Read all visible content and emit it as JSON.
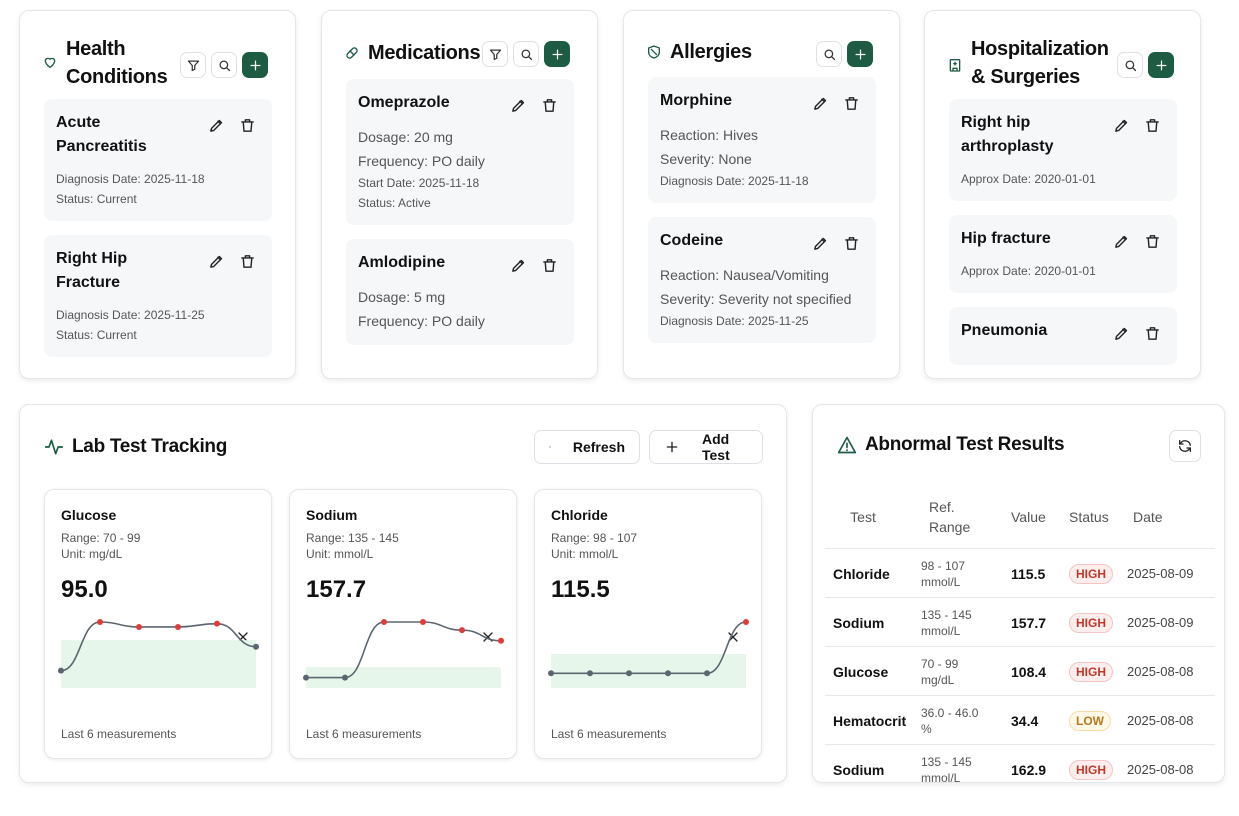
{
  "health_conditions": {
    "title": "Health Conditions",
    "items": [
      {
        "name": "Acute Pancreatitis",
        "lines": [],
        "small": [
          "Diagnosis Date: 2025-11-18",
          "Status: Current"
        ]
      },
      {
        "name": "Right Hip Fracture",
        "lines": [],
        "small": [
          "Diagnosis Date: 2025-11-25",
          "Status: Current"
        ]
      }
    ]
  },
  "medications": {
    "title": "Medications",
    "items": [
      {
        "name": "Omeprazole",
        "lines": [
          "Dosage: 20 mg",
          "Frequency: PO daily"
        ],
        "small": [
          "Start Date: 2025-11-18",
          "Status: Active"
        ]
      },
      {
        "name": "Amlodipine",
        "lines": [
          "Dosage: 5 mg",
          "Frequency: PO daily"
        ],
        "small": []
      }
    ]
  },
  "allergies": {
    "title": "Allergies",
    "items": [
      {
        "name": "Morphine",
        "lines": [
          "Reaction: Hives",
          "Severity: None"
        ],
        "small": [
          "Diagnosis Date: 2025-11-18"
        ]
      },
      {
        "name": "Codeine",
        "lines": [
          "Reaction: Nausea/Vomiting",
          "Severity: Severity not specified"
        ],
        "small": [
          "Diagnosis Date: 2025-11-25"
        ]
      }
    ]
  },
  "hospitalizations": {
    "title": "Hospitalization & Surgeries",
    "items": [
      {
        "name": "Right hip arthroplasty",
        "lines": [],
        "small": [
          "Approx Date: 2020-01-01"
        ]
      },
      {
        "name": "Hip fracture",
        "lines": [],
        "small": [
          "Approx Date: 2020-01-01"
        ]
      },
      {
        "name": "Pneumonia",
        "lines": [],
        "small": []
      }
    ]
  },
  "lab_tracking": {
    "title": "Lab Test Tracking",
    "buttons": [
      "Refresh",
      "Add Test"
    ],
    "tests": [
      {
        "name": "Glucose",
        "range": "Range: 70 - 99",
        "unit": "Unit: mg/dL",
        "latest": "95.0",
        "ref_low": 70,
        "ref_high": 99,
        "trend": [
          80.5,
          110,
          107,
          107,
          109,
          95
        ],
        "footer": "Last 6 measurements"
      },
      {
        "name": "Sodium",
        "range": "Range: 135 - 145",
        "unit": "Unit: mmol/L",
        "latest": "157.7",
        "ref_low": 135,
        "ref_high": 145,
        "trend": [
          140,
          140,
          166.7,
          166.7,
          162.8,
          157.7
        ],
        "footer": "Last 6 measurements"
      },
      {
        "name": "Chloride",
        "range": "Range: 98 - 107",
        "unit": "Unit: mmol/L",
        "latest": "115.5",
        "ref_low": 98,
        "ref_high": 107,
        "trend": [
          101.9,
          101.9,
          101.9,
          101.9,
          101.9,
          115.5
        ],
        "footer": "Last 6 measurements"
      }
    ]
  },
  "abnormal_results": {
    "title": "Abnormal Test Results",
    "columns": [
      "Test",
      "Ref. Range",
      "Value",
      "Status",
      "Date"
    ],
    "rows": [
      [
        "Chloride",
        "98 - 107 mmol/L",
        "115.5",
        "HIGH",
        "2025-08-09"
      ],
      [
        "Sodium",
        "135 - 145 mmol/L",
        "157.7",
        "HIGH",
        "2025-08-09"
      ],
      [
        "Glucose",
        "70 - 99 mg/dL",
        "108.4",
        "HIGH",
        "2025-08-08"
      ],
      [
        "Hematocrit",
        "36.0 - 46.0 %",
        "34.4",
        "LOW",
        "2025-08-08"
      ],
      [
        "Sodium",
        "135 - 145 mmol/L",
        "162.9",
        "HIGH",
        "2025-08-08"
      ]
    ]
  }
}
